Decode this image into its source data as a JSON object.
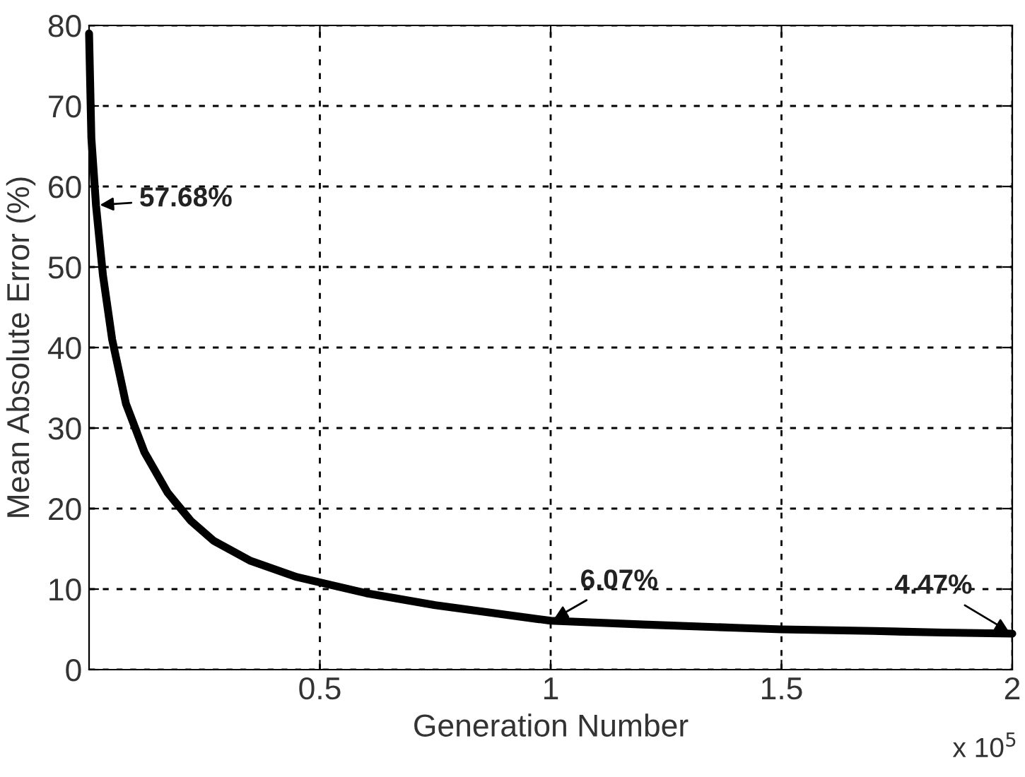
{
  "chart_data": {
    "type": "line",
    "xlabel": "Generation Number",
    "ylabel": "Mean Absolute Error (%)",
    "x": [
      0,
      0.005,
      0.015,
      0.03,
      0.05,
      0.08,
      0.12,
      0.17,
      0.22,
      0.27,
      0.35,
      0.45,
      0.6,
      0.75,
      0.88,
      1,
      1.2,
      1.4,
      1.5,
      1.7,
      1.85,
      2
    ],
    "series": [
      {
        "color": "#000000",
        "values": [
          79,
          66,
          57.68,
          49,
          41,
          33,
          27,
          22,
          18.5,
          16,
          13.5,
          11.5,
          9.5,
          8,
          7,
          6.07,
          5.6,
          5.2,
          5.0,
          4.8,
          4.6,
          4.47
        ]
      }
    ],
    "xlim": [
      0,
      2
    ],
    "ylim": [
      0,
      80
    ],
    "xticks": [
      0.5,
      1,
      1.5,
      2
    ],
    "yticks": [
      0,
      10,
      20,
      30,
      40,
      50,
      60,
      70,
      80
    ],
    "grid": true,
    "marker": "none",
    "line_style": "solid",
    "annotations": [
      {
        "text": "57.68%",
        "x": 0.015,
        "y": 57.68
      },
      {
        "text": "6.07%",
        "x": 1,
        "y": 6.07
      },
      {
        "text": "4.47%",
        "x": 2,
        "y": 4.47
      },
      "x 10$^{5}$"
    ]
  }
}
